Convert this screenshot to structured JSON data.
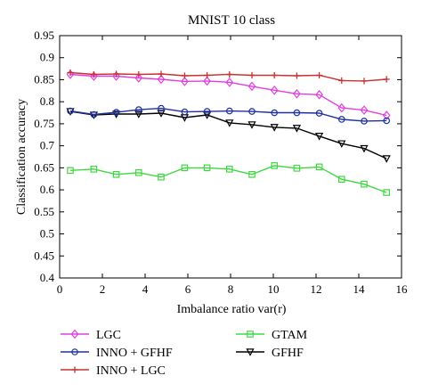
{
  "chart_data": {
    "type": "line",
    "title": "MNIST 10 class",
    "xlabel": "Imbalance ratio var(r)",
    "ylabel": "Classification accuracy",
    "xlim": [
      0,
      16
    ],
    "ylim": [
      0.4,
      0.95
    ],
    "xticks": [
      0,
      2,
      4,
      6,
      8,
      10,
      12,
      14,
      16
    ],
    "yticks": [
      0.4,
      0.45,
      0.5,
      0.55,
      0.6,
      0.65,
      0.7,
      0.75,
      0.8,
      0.85,
      0.9,
      0.95
    ],
    "ytick_labels": [
      "0.4",
      "0.45",
      "0.5",
      "0.55",
      "0.6",
      "0.65",
      "0.7",
      "0.75",
      "0.8",
      "0.85",
      "0.9",
      "0.95"
    ],
    "grid": false,
    "legend_position": "below",
    "x": [
      0.5,
      1.6,
      2.65,
      3.7,
      4.75,
      5.85,
      6.9,
      7.95,
      9.0,
      10.05,
      11.1,
      12.15,
      13.2,
      14.25,
      15.3
    ],
    "series": [
      {
        "name": "LGC",
        "color": "#e040e0",
        "marker": "diamond",
        "values": [
          0.862,
          0.858,
          0.858,
          0.854,
          0.851,
          0.846,
          0.847,
          0.844,
          0.835,
          0.826,
          0.818,
          0.816,
          0.786,
          0.781,
          0.769
        ]
      },
      {
        "name": "INNO + LGC",
        "color": "#c83232",
        "marker": "plus",
        "values": [
          0.866,
          0.862,
          0.863,
          0.862,
          0.863,
          0.859,
          0.86,
          0.862,
          0.86,
          0.86,
          0.859,
          0.86,
          0.848,
          0.847,
          0.851
        ]
      },
      {
        "name": "GFHF",
        "color": "#000000",
        "marker": "triangle-down",
        "values": [
          0.778,
          0.77,
          0.772,
          0.772,
          0.774,
          0.764,
          0.77,
          0.752,
          0.748,
          0.742,
          0.74,
          0.722,
          0.705,
          0.694,
          0.671
        ]
      },
      {
        "name": "INNO + GFHF",
        "color": "#2030a0",
        "marker": "circle",
        "values": [
          0.779,
          0.771,
          0.776,
          0.782,
          0.785,
          0.777,
          0.778,
          0.779,
          0.778,
          0.775,
          0.775,
          0.774,
          0.76,
          0.756,
          0.757
        ]
      },
      {
        "name": "GTAM",
        "color": "#40d840",
        "marker": "square",
        "values": [
          0.644,
          0.647,
          0.635,
          0.639,
          0.629,
          0.65,
          0.65,
          0.647,
          0.635,
          0.655,
          0.649,
          0.652,
          0.624,
          0.613,
          0.594
        ]
      }
    ],
    "legend_order": [
      0,
      3,
      1,
      4,
      2
    ]
  }
}
